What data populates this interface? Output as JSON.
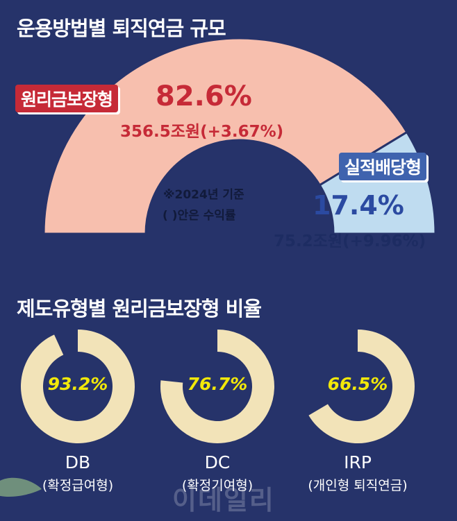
{
  "titles": {
    "section1": "운용방법별 퇴직연금 규모",
    "section2": "제도유형별 원리금보장형 비율"
  },
  "note": {
    "line1": "※2024년 기준",
    "line2": "(   )안은 수익률"
  },
  "watermark": "이데일리",
  "colors": {
    "background": "#26336a",
    "principal": "#f7bfae",
    "performance": "#bfdcf0",
    "donut": "#f2e3b8",
    "principal_text": "#c62a37",
    "performance_text": "#2b4aa1",
    "pct_yellow": "#f2e80a"
  },
  "chart_data": [
    {
      "type": "pie",
      "variant": "half-donut",
      "title": "운용방법별 퇴직연금 규모",
      "slices": [
        {
          "label": "원리금보장형",
          "percent_text": "82.6%",
          "value": 82.6,
          "amount_text": "356.5조원(+3.67%)",
          "amount": 356.5,
          "return_text": "+3.67%"
        },
        {
          "label": "실적배당형",
          "percent_text": "17.4%",
          "value": 17.4,
          "amount_text": "75.2조원(+9.96%)",
          "amount": 75.2,
          "return_text": "+9.96%"
        }
      ]
    },
    {
      "type": "pie",
      "variant": "donut",
      "title": "제도유형별 원리금보장형 비율",
      "items": [
        {
          "name": "DB",
          "sub": "(확정급여형)",
          "value": 93.2,
          "percent_text": "93.2%"
        },
        {
          "name": "DC",
          "sub": "(확정기여형)",
          "value": 76.7,
          "percent_text": "76.7%"
        },
        {
          "name": "IRP",
          "sub": "(개인형 퇴직연금)",
          "value": 66.5,
          "percent_text": "66.5%"
        }
      ]
    }
  ]
}
